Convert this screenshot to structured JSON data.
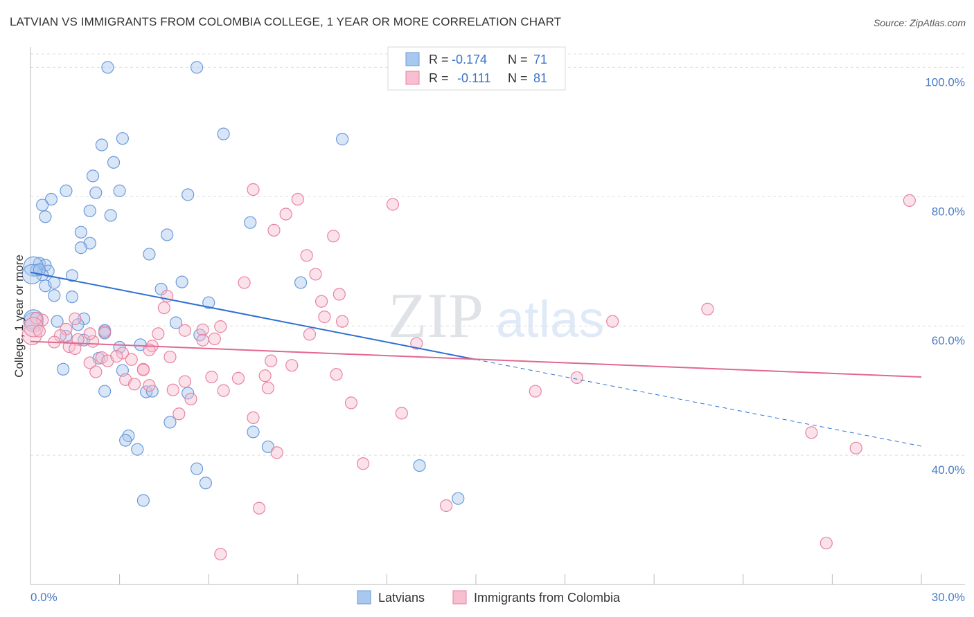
{
  "title": "LATVIAN VS IMMIGRANTS FROM COLOMBIA COLLEGE, 1 YEAR OR MORE CORRELATION CHART",
  "source": "Source: ZipAtlas.com",
  "watermark": {
    "zip": "ZIP",
    "atlas": "atlas"
  },
  "colors": {
    "blue_fill": "#a9c8ef",
    "blue_stroke": "#6b9ad8",
    "blue_line": "#2f6fd0",
    "pink_fill": "#f7bfd0",
    "pink_stroke": "#e8829f",
    "pink_line": "#e2688e",
    "tick_text": "#4a7cc7",
    "grid": "#dddddd"
  },
  "legend_stats": [
    {
      "r_label": "R =",
      "r_value": "-0.174",
      "n_label": "N =",
      "n_value": "71"
    },
    {
      "r_label": "R =",
      "r_value": "-0.111",
      "n_label": "N =",
      "n_value": "81"
    }
  ],
  "chart_data": {
    "type": "scatter",
    "title": "LATVIAN VS IMMIGRANTS FROM COLOMBIA COLLEGE, 1 YEAR OR MORE CORRELATION CHART",
    "xlabel": "",
    "ylabel": "College, 1 year or more",
    "xlim": [
      0,
      30
    ],
    "ylim": [
      20,
      104
    ],
    "x_tick_labels": [
      "0.0%",
      "30.0%"
    ],
    "y_ticks": [
      40,
      60,
      80,
      100
    ],
    "y_tick_labels": [
      "40.0%",
      "60.0%",
      "80.0%",
      "100.0%"
    ],
    "grid": "horizontal dashed",
    "legend_position": "bottom",
    "series": [
      {
        "name": "Latvians",
        "r": -0.174,
        "n": 71,
        "trend": {
          "x": [
            0,
            15
          ],
          "y": [
            68.3,
            54.8
          ],
          "extended_to": [
            30,
            41.4
          ]
        },
        "points": [
          [
            2.6,
            100
          ],
          [
            5.6,
            100
          ],
          [
            6.5,
            89.7
          ],
          [
            10.5,
            88.9
          ],
          [
            3.1,
            89
          ],
          [
            2.4,
            88
          ],
          [
            2.8,
            85.3
          ],
          [
            2.1,
            83.2
          ],
          [
            1.2,
            80.9
          ],
          [
            2.2,
            80.6
          ],
          [
            3.0,
            80.9
          ],
          [
            5.3,
            80.3
          ],
          [
            0.7,
            79.6
          ],
          [
            0.4,
            78.7
          ],
          [
            2.0,
            77.8
          ],
          [
            0.5,
            76.9
          ],
          [
            2.7,
            77.1
          ],
          [
            7.4,
            76.0
          ],
          [
            1.7,
            74.5
          ],
          [
            4.6,
            74.1
          ],
          [
            2.0,
            72.8
          ],
          [
            1.7,
            72.1
          ],
          [
            4.0,
            71.1
          ],
          [
            0.3,
            69.7
          ],
          [
            0.5,
            69.4
          ],
          [
            0.1,
            69.2
          ],
          [
            0.2,
            68.6
          ],
          [
            0.6,
            68.5
          ],
          [
            0.4,
            67.9
          ],
          [
            1.4,
            67.8
          ],
          [
            5.1,
            66.8
          ],
          [
            0.5,
            66.2
          ],
          [
            0.8,
            66.7
          ],
          [
            4.4,
            65.7
          ],
          [
            9.1,
            66.7
          ],
          [
            0.8,
            64.7
          ],
          [
            1.4,
            64.5
          ],
          [
            6.0,
            63.6
          ],
          [
            0.1,
            60.6
          ],
          [
            0.9,
            60.7
          ],
          [
            1.8,
            61.1
          ],
          [
            1.6,
            60.2
          ],
          [
            4.9,
            60.5
          ],
          [
            2.5,
            59.3
          ],
          [
            5.7,
            58.6
          ],
          [
            1.2,
            58.4
          ],
          [
            1.8,
            57.8
          ],
          [
            3.7,
            57.1
          ],
          [
            3.0,
            56.7
          ],
          [
            2.3,
            55.0
          ],
          [
            1.1,
            53.3
          ],
          [
            3.1,
            53.1
          ],
          [
            2.5,
            49.9
          ],
          [
            3.9,
            49.8
          ],
          [
            4.1,
            49.9
          ],
          [
            5.3,
            49.6
          ],
          [
            4.7,
            45.1
          ],
          [
            7.5,
            43.6
          ],
          [
            3.3,
            43.0
          ],
          [
            3.2,
            42.3
          ],
          [
            3.6,
            40.9
          ],
          [
            8.0,
            41.3
          ],
          [
            13.1,
            38.4
          ],
          [
            5.6,
            37.9
          ],
          [
            5.9,
            35.7
          ],
          [
            3.8,
            33.0
          ],
          [
            14.4,
            33.3
          ],
          [
            0.05,
            68.0
          ],
          [
            0.3,
            68.7
          ],
          [
            0.1,
            61.0
          ],
          [
            2.5,
            58.9
          ]
        ]
      },
      {
        "name": "Immigrants from Colombia",
        "r": -0.111,
        "n": 81,
        "trend": {
          "x": [
            0,
            30
          ],
          "y": [
            57.6,
            52.1
          ]
        },
        "points": [
          [
            29.6,
            79.4
          ],
          [
            7.5,
            81.1
          ],
          [
            9.0,
            79.6
          ],
          [
            12.2,
            78.8
          ],
          [
            8.6,
            77.3
          ],
          [
            8.2,
            74.8
          ],
          [
            10.2,
            73.9
          ],
          [
            9.3,
            70.9
          ],
          [
            9.6,
            68.0
          ],
          [
            7.2,
            66.7
          ],
          [
            10.4,
            64.9
          ],
          [
            9.8,
            63.8
          ],
          [
            22.8,
            62.6
          ],
          [
            4.5,
            62.8
          ],
          [
            4.6,
            64.6
          ],
          [
            9.9,
            61.4
          ],
          [
            10.5,
            60.7
          ],
          [
            19.6,
            60.7
          ],
          [
            6.4,
            59.9
          ],
          [
            5.2,
            59.3
          ],
          [
            5.8,
            59.4
          ],
          [
            2.5,
            59.1
          ],
          [
            0.4,
            60.9
          ],
          [
            0.2,
            61.2
          ],
          [
            1.5,
            61.1
          ],
          [
            4.3,
            58.8
          ],
          [
            1.2,
            59.5
          ],
          [
            9.4,
            58.7
          ],
          [
            6.2,
            58.0
          ],
          [
            1.0,
            58.5
          ],
          [
            0.8,
            57.5
          ],
          [
            1.6,
            57.9
          ],
          [
            13.0,
            57.3
          ],
          [
            5.8,
            57.8
          ],
          [
            2.1,
            57.6
          ],
          [
            1.3,
            56.8
          ],
          [
            3.1,
            55.8
          ],
          [
            4.1,
            56.9
          ],
          [
            4.0,
            56.3
          ],
          [
            1.5,
            56.5
          ],
          [
            2.4,
            55.1
          ],
          [
            2.6,
            54.6
          ],
          [
            3.4,
            54.8
          ],
          [
            4.7,
            55.2
          ],
          [
            8.1,
            54.6
          ],
          [
            8.8,
            53.9
          ],
          [
            2.0,
            54.3
          ],
          [
            3.8,
            53.3
          ],
          [
            2.2,
            52.9
          ],
          [
            10.3,
            52.5
          ],
          [
            7.9,
            52.3
          ],
          [
            6.1,
            52.1
          ],
          [
            18.4,
            52.0
          ],
          [
            7.0,
            51.9
          ],
          [
            5.2,
            51.4
          ],
          [
            3.2,
            51.7
          ],
          [
            3.5,
            51.0
          ],
          [
            4.0,
            50.8
          ],
          [
            6.5,
            50.0
          ],
          [
            8.0,
            50.4
          ],
          [
            4.8,
            50.1
          ],
          [
            17.0,
            49.9
          ],
          [
            5.4,
            48.7
          ],
          [
            10.8,
            48.1
          ],
          [
            12.5,
            46.5
          ],
          [
            5.0,
            46.4
          ],
          [
            7.5,
            45.8
          ],
          [
            26.3,
            43.5
          ],
          [
            27.8,
            41.1
          ],
          [
            8.3,
            40.4
          ],
          [
            11.2,
            38.7
          ],
          [
            7.7,
            31.8
          ],
          [
            14.0,
            32.2
          ],
          [
            26.8,
            26.4
          ],
          [
            6.4,
            24.7
          ],
          [
            0.05,
            58.6
          ],
          [
            0.1,
            59.8
          ],
          [
            0.3,
            59.2
          ],
          [
            2.9,
            55.3
          ],
          [
            3.8,
            53.2
          ],
          [
            2.0,
            58.8
          ]
        ]
      }
    ]
  }
}
